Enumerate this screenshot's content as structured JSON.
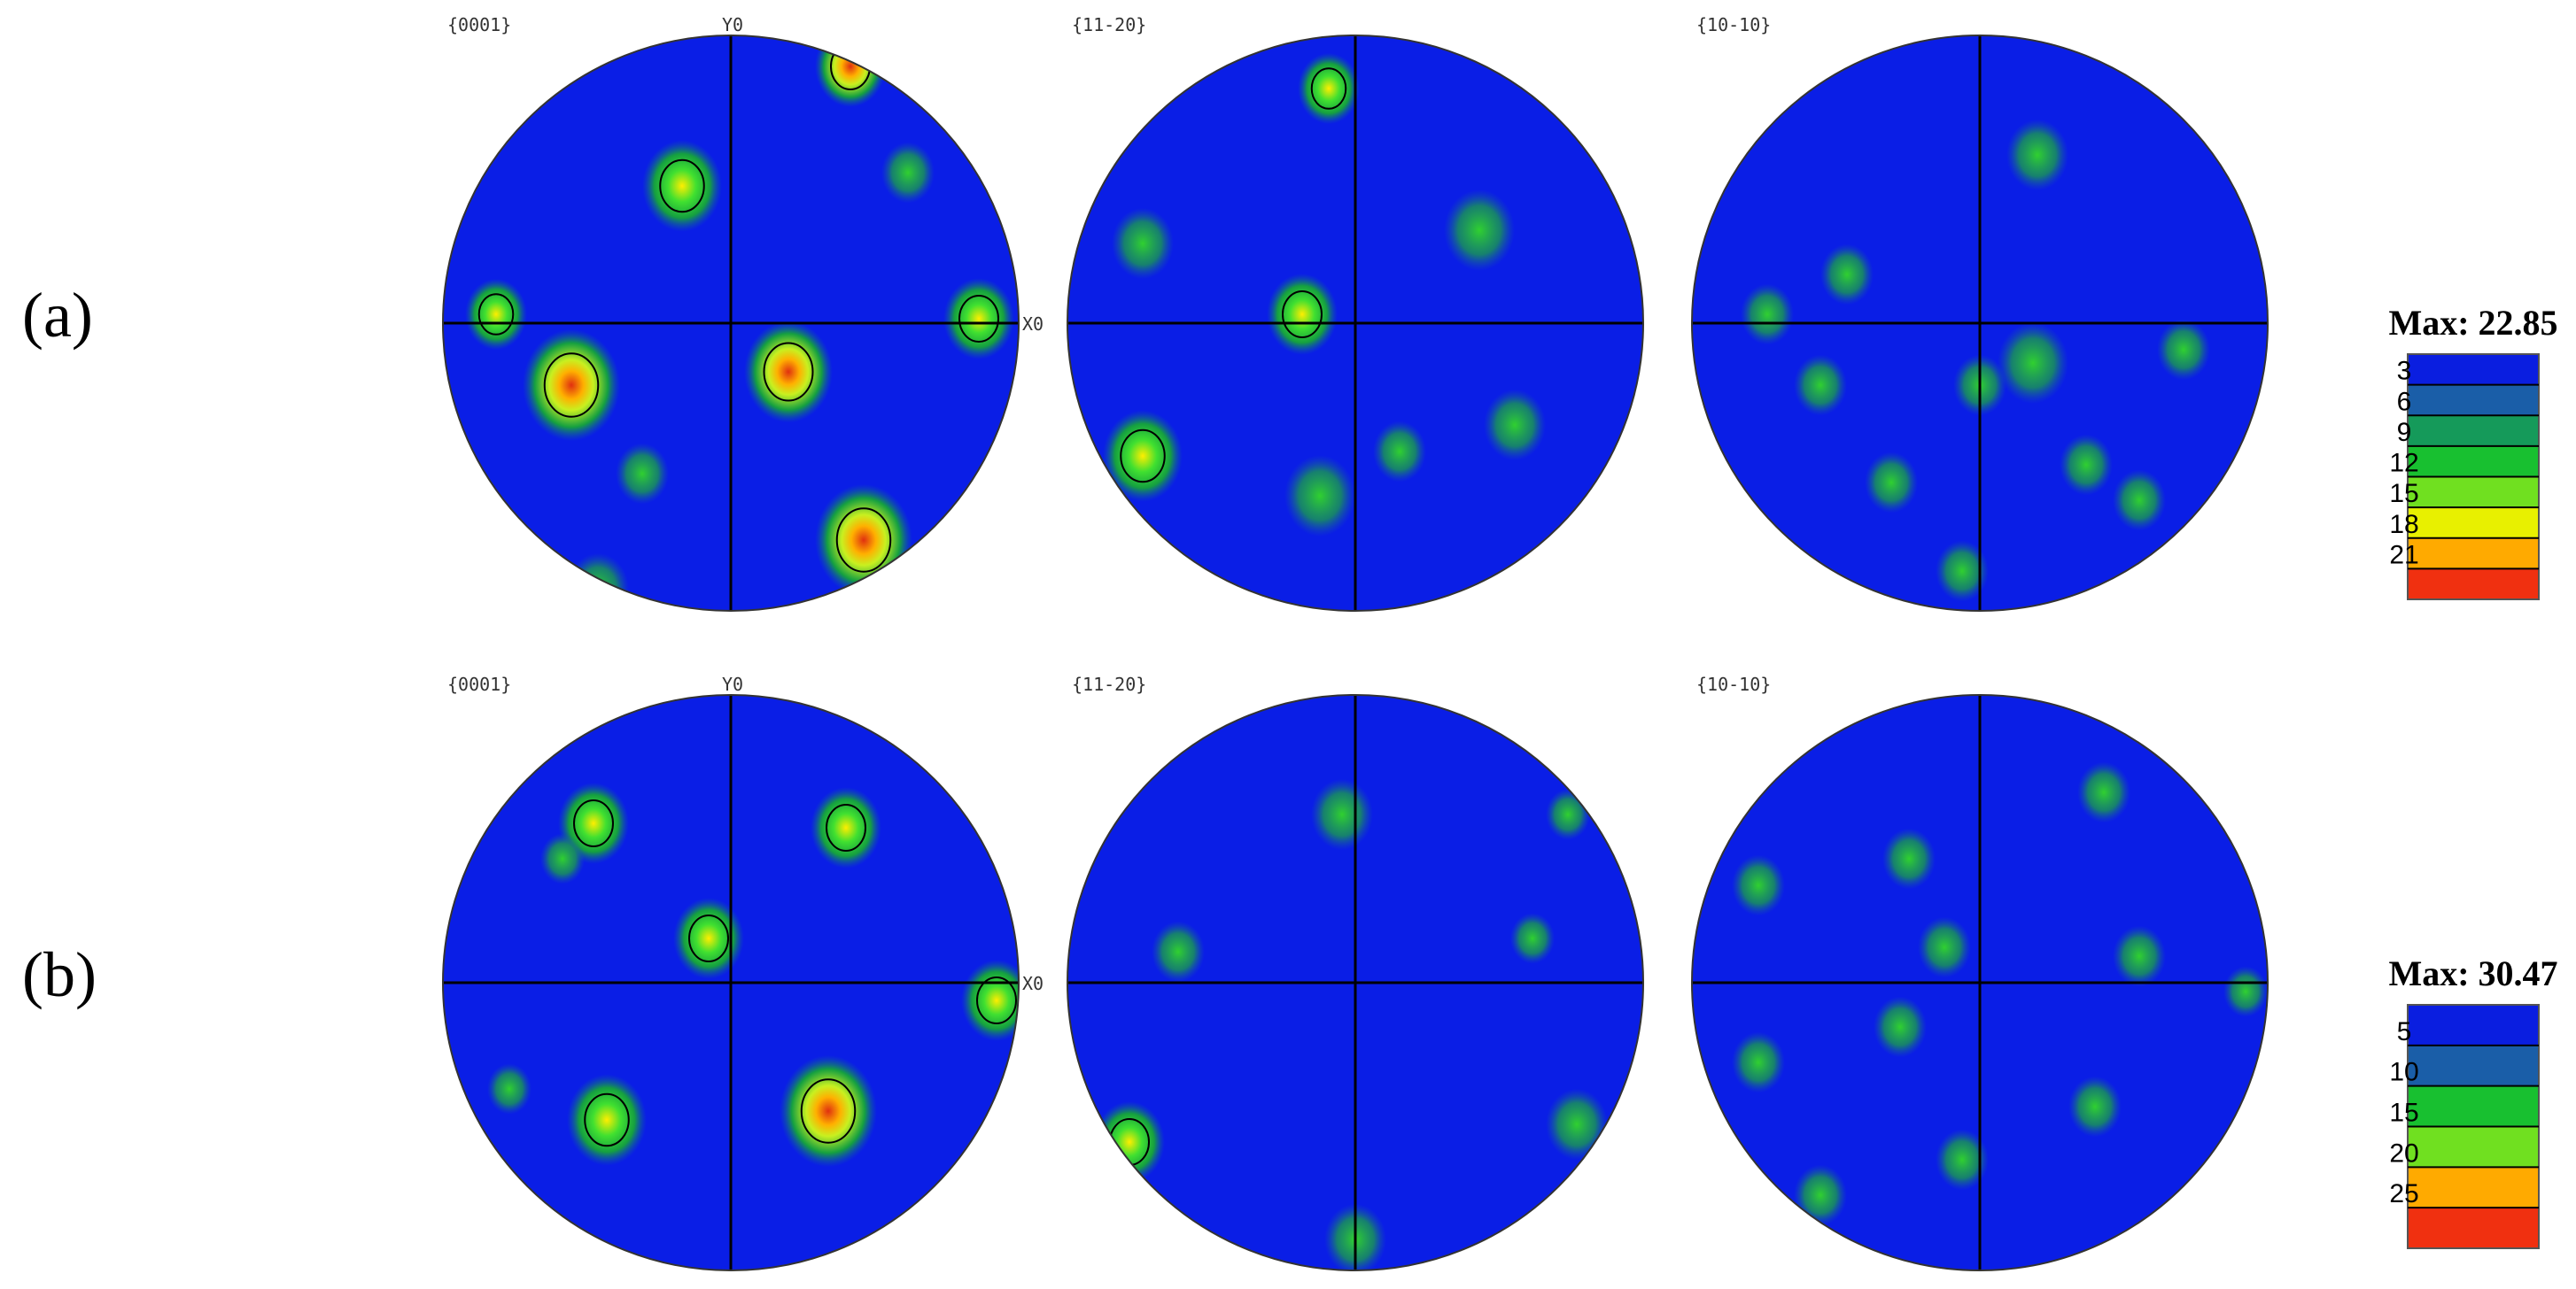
{
  "rows": [
    {
      "label": "(a)",
      "figures": [
        {
          "title": "{0001}",
          "y_label": "Y0",
          "x_label": "X0"
        },
        {
          "title": "{11-20}"
        },
        {
          "title": "{10-10}"
        }
      ],
      "colorbar": {
        "max_label": "Max: 22.85",
        "ticks": [
          3,
          6,
          9,
          12,
          15,
          18,
          21
        ]
      }
    },
    {
      "label": "(b)",
      "figures": [
        {
          "title": "{0001}",
          "y_label": "Y0",
          "x_label": "X0"
        },
        {
          "title": "{11-20}"
        },
        {
          "title": "{10-10}"
        }
      ],
      "colorbar": {
        "max_label": "Max: 30.47",
        "ticks": [
          5,
          10,
          15,
          20,
          25
        ]
      }
    }
  ]
}
